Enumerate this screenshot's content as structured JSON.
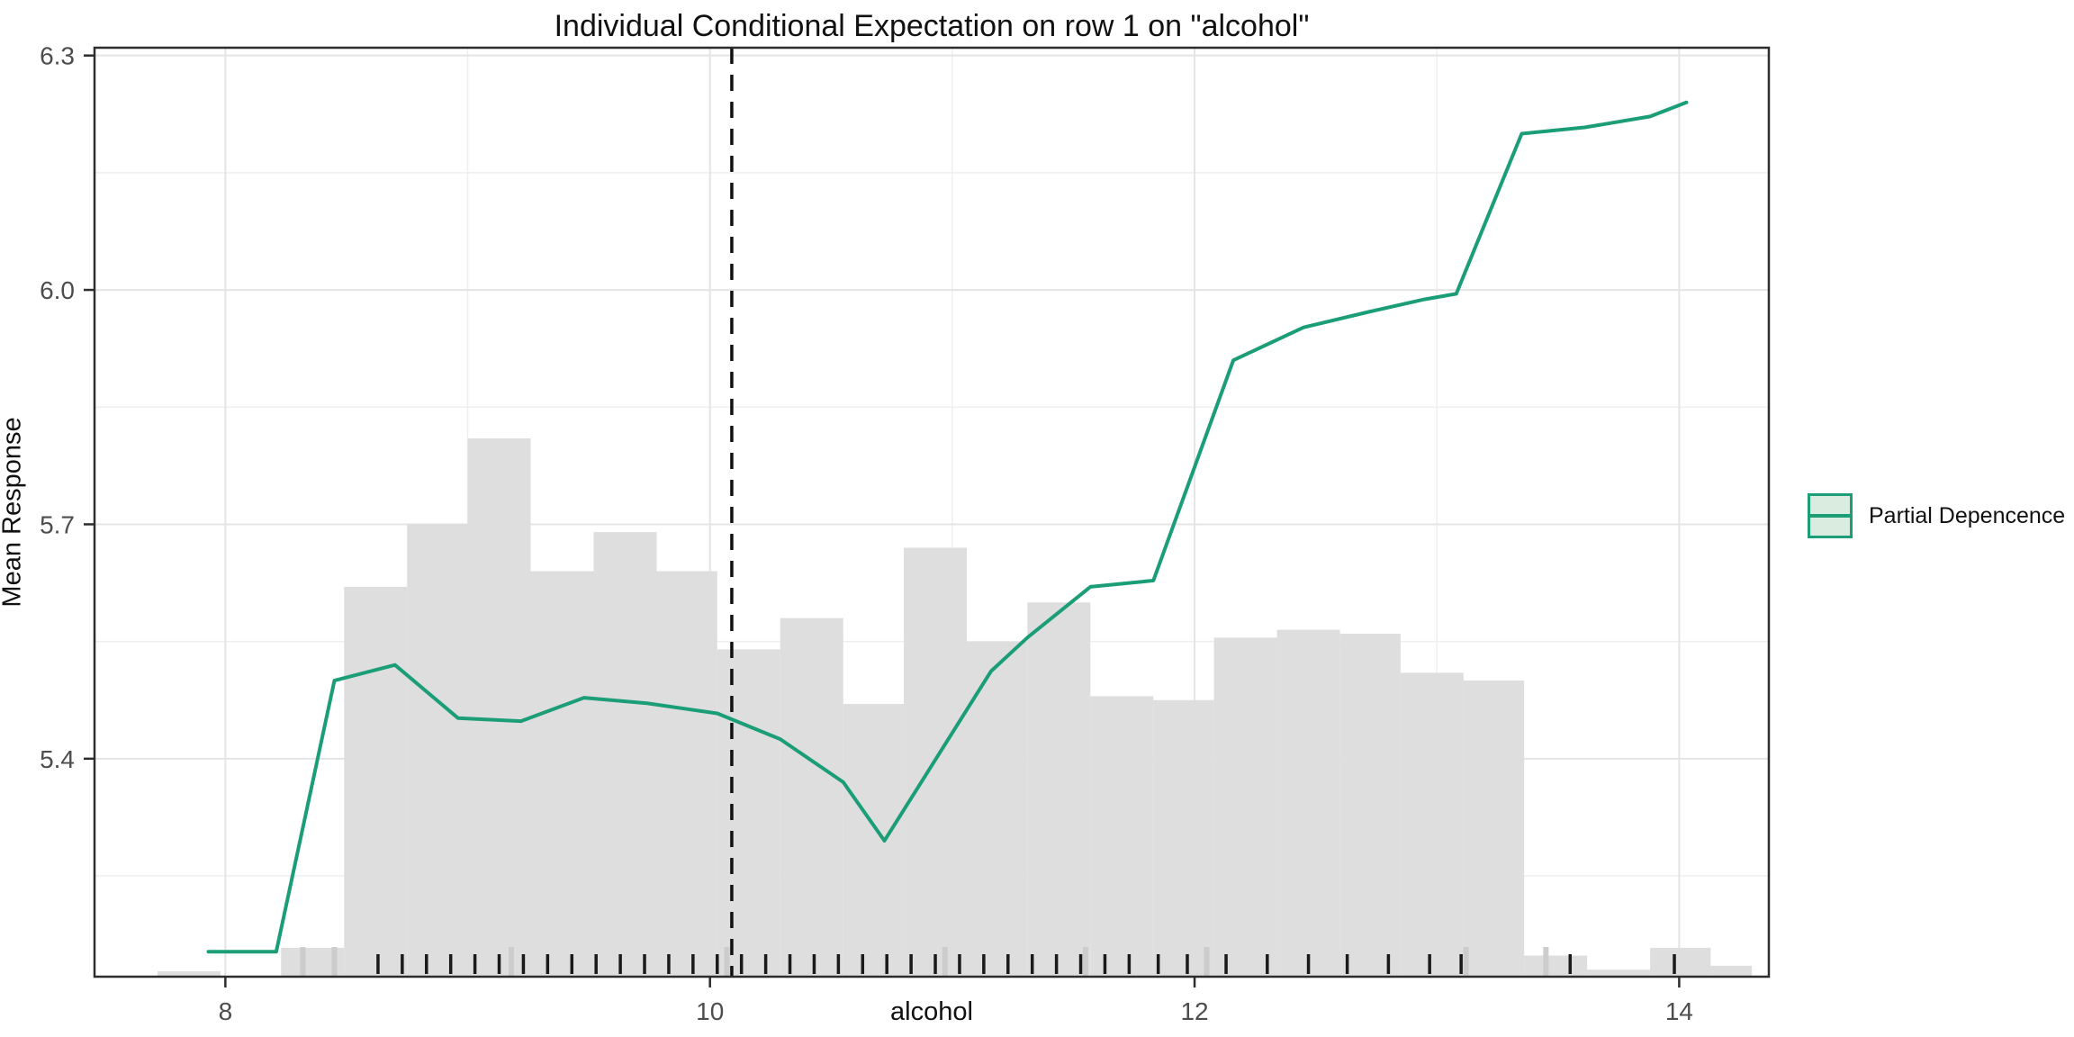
{
  "page": {
    "title": "Individual Conditional Expectation on row 1 on \"alcohol\""
  },
  "chart_data": {
    "type": "line",
    "title": "Individual Conditional Expectation on row 1 on \"alcohol\"",
    "xlabel": "alcohol",
    "ylabel": "Mean Response",
    "xlim": [
      7.46,
      14.37
    ],
    "ylim": [
      5.121,
      6.31
    ],
    "x_ticks": [
      8,
      10,
      12,
      14
    ],
    "x_tick_labels": [
      "8",
      "10",
      "12",
      "14"
    ],
    "x_minor_ticks": [
      9,
      11,
      13
    ],
    "y_ticks": [
      5.4,
      5.7,
      6.0,
      6.3
    ],
    "y_tick_labels": [
      "5.4",
      "5.7",
      "6.0",
      "6.3"
    ],
    "y_minor_ticks": [
      5.25,
      5.55,
      5.85,
      6.15
    ],
    "grid": "on",
    "legend_position": "right",
    "series": [
      {
        "name": "Partial Depencence",
        "color": "#1b9e77",
        "width": 4,
        "points": [
          [
            7.93,
            5.153
          ],
          [
            8.21,
            5.153
          ],
          [
            8.45,
            5.5
          ],
          [
            8.7,
            5.52
          ],
          [
            8.96,
            5.452
          ],
          [
            9.22,
            5.448
          ],
          [
            9.48,
            5.478
          ],
          [
            9.74,
            5.471
          ],
          [
            10.03,
            5.458
          ],
          [
            10.29,
            5.425
          ],
          [
            10.55,
            5.37
          ],
          [
            10.72,
            5.295
          ],
          [
            11.16,
            5.512
          ],
          [
            11.31,
            5.555
          ],
          [
            11.57,
            5.62
          ],
          [
            11.83,
            5.628
          ],
          [
            12.16,
            5.91
          ],
          [
            12.45,
            5.952
          ],
          [
            12.72,
            5.972
          ],
          [
            12.95,
            5.988
          ],
          [
            13.08,
            5.995
          ],
          [
            13.35,
            6.2
          ],
          [
            13.61,
            6.208
          ],
          [
            13.88,
            6.222
          ],
          [
            14.03,
            6.24
          ]
        ]
      }
    ],
    "vline": {
      "x": 10.09,
      "color": "#111111",
      "style": "dashed",
      "meaning": "alcohol value of row 1"
    },
    "histogram": {
      "color": "#dedede",
      "baseline": 5.121,
      "bars": [
        {
          "x0": 7.72,
          "x1": 7.98,
          "top": 5.128
        },
        {
          "x0": 8.23,
          "x1": 8.49,
          "top": 5.158
        },
        {
          "x0": 8.49,
          "x1": 8.75,
          "top": 5.62
        },
        {
          "x0": 8.75,
          "x1": 9.0,
          "top": 5.7
        },
        {
          "x0": 9.0,
          "x1": 9.26,
          "top": 5.81
        },
        {
          "x0": 9.26,
          "x1": 9.52,
          "top": 5.64
        },
        {
          "x0": 9.52,
          "x1": 9.78,
          "top": 5.69
        },
        {
          "x0": 9.78,
          "x1": 10.03,
          "top": 5.64
        },
        {
          "x0": 10.03,
          "x1": 10.29,
          "top": 5.54
        },
        {
          "x0": 10.29,
          "x1": 10.55,
          "top": 5.58
        },
        {
          "x0": 10.55,
          "x1": 10.8,
          "top": 5.47
        },
        {
          "x0": 10.8,
          "x1": 11.06,
          "top": 5.67
        },
        {
          "x0": 11.06,
          "x1": 11.31,
          "top": 5.55
        },
        {
          "x0": 11.31,
          "x1": 11.57,
          "top": 5.6
        },
        {
          "x0": 11.57,
          "x1": 11.83,
          "top": 5.48
        },
        {
          "x0": 11.83,
          "x1": 12.08,
          "top": 5.475
        },
        {
          "x0": 12.08,
          "x1": 12.34,
          "top": 5.555
        },
        {
          "x0": 12.34,
          "x1": 12.6,
          "top": 5.565
        },
        {
          "x0": 12.6,
          "x1": 12.85,
          "top": 5.56
        },
        {
          "x0": 12.85,
          "x1": 13.11,
          "top": 5.51
        },
        {
          "x0": 13.11,
          "x1": 13.36,
          "top": 5.5
        },
        {
          "x0": 13.36,
          "x1": 13.62,
          "top": 5.148
        },
        {
          "x0": 13.62,
          "x1": 13.88,
          "top": 5.13
        },
        {
          "x0": 13.88,
          "x1": 14.13,
          "top": 5.158
        },
        {
          "x0": 14.13,
          "x1": 14.3,
          "top": 5.135
        }
      ]
    },
    "rug": {
      "color": "#1a1a1a",
      "xs": [
        8.63,
        8.73,
        8.83,
        8.93,
        9.03,
        9.13,
        9.23,
        9.33,
        9.43,
        9.53,
        9.63,
        9.73,
        9.83,
        9.93,
        10.03,
        10.13,
        10.23,
        10.33,
        10.43,
        10.53,
        10.63,
        10.73,
        10.83,
        10.93,
        11.03,
        11.13,
        11.23,
        11.33,
        11.43,
        11.53,
        11.63,
        11.73,
        11.85,
        11.97,
        12.13,
        12.3,
        12.47,
        12.63,
        12.8,
        12.97,
        13.1,
        13.55,
        13.98
      ]
    },
    "rug_secondary": {
      "color": "#cccccc",
      "xs": [
        8.32,
        8.45,
        9.18,
        10.07,
        10.97,
        11.55,
        12.05,
        13.12,
        13.45
      ]
    }
  },
  "legend": {
    "label": "Partial Depencence",
    "swatch_fill": "#d9ecdf",
    "swatch_border": "#1b9e77",
    "line_color": "#1b9e77"
  },
  "axes_text": {
    "x_title": "alcohol",
    "y_title": "Mean Response"
  },
  "style": {
    "grid_major": "#e4e4e4",
    "grid_minor": "#efefef",
    "panel_border": "#2d2d2d",
    "tick_label_color": "#4d4d4d"
  }
}
